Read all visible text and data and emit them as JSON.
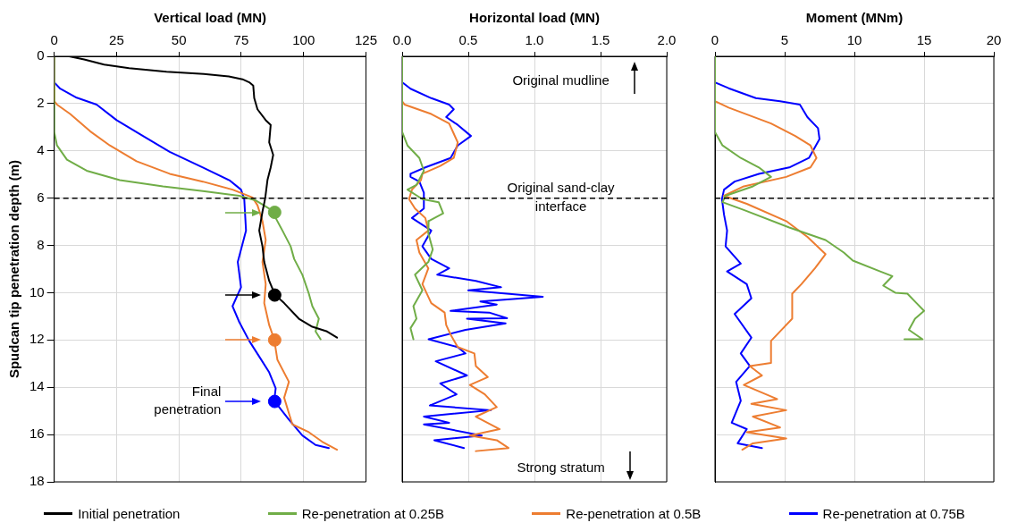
{
  "chart_data": [
    {
      "type": "line",
      "xlabel": "Vertical load (MN)",
      "ylabel": "Spudcan tip penetration depth (m)",
      "xlim": [
        0,
        125
      ],
      "xticks": [
        0,
        25,
        50,
        75,
        100,
        125
      ],
      "ylim": [
        18,
        0
      ],
      "yticks": [
        0,
        2,
        4,
        6,
        8,
        10,
        12,
        14,
        16,
        18
      ],
      "grid": true,
      "legend": "bottom",
      "ref_lines": [
        {
          "axis": "y",
          "value": 6,
          "line_style": "dashed",
          "color": "#000000"
        }
      ],
      "annotations": [
        "Final penetration"
      ],
      "series": [
        {
          "name": "Initial penetration",
          "color": "#000000",
          "x": [
            0,
            6,
            12,
            20,
            30,
            45,
            60,
            70,
            75.5,
            78.2,
            79.8,
            80.2,
            81.5,
            84.8,
            86.8,
            86.2,
            87.8,
            86.8,
            85.5,
            84.6,
            83.5,
            82.2,
            83.5,
            84.2,
            86.2,
            88.6,
            92.2,
            98.1,
            103.5,
            109.4,
            113.4
          ],
          "values": [
            0,
            0,
            0.13,
            0.35,
            0.5,
            0.65,
            0.75,
            0.85,
            0.97,
            1.1,
            1.24,
            1.77,
            2.24,
            2.7,
            2.9,
            3.64,
            4.17,
            4.7,
            5.24,
            6,
            6.57,
            7.37,
            8.04,
            8.7,
            9.5,
            10.1,
            10.44,
            11.1,
            11.44,
            11.64,
            11.9
          ]
        },
        {
          "name": "Re-penetration at 0.25B",
          "color": "#70ad47",
          "x": [
            0,
            0,
            1.1,
            5.1,
            13,
            26.3,
            43.6,
            59.6,
            74.2,
            80.9,
            86.2,
            88.8,
            91.5,
            94.8,
            96.2,
            99.5,
            102.1,
            103.5,
            106.1,
            104.8,
            106.8
          ],
          "values": [
            0,
            3.2,
            3.77,
            4.37,
            4.84,
            5.24,
            5.5,
            5.7,
            5.9,
            6.1,
            6.44,
            6.84,
            7.37,
            8.04,
            8.57,
            9.24,
            10.04,
            10.57,
            11.1,
            11.64,
            11.97
          ]
        },
        {
          "name": "Re-penetration at 0.5B",
          "color": "#ed7d31",
          "x": [
            0,
            0,
            1.1,
            6.4,
            14.4,
            22.3,
            33,
            46.3,
            59.6,
            71.5,
            79.5,
            81.5,
            83.5,
            84.8,
            83.5,
            84.8,
            84.2,
            86.2,
            88.2,
            89.5,
            94.1,
            92.2,
            94.1,
            95.5,
            102.1,
            107.4,
            113.4
          ],
          "values": [
            0,
            1.9,
            2.04,
            2.44,
            3.17,
            3.77,
            4.44,
            4.97,
            5.3,
            5.64,
            5.97,
            6.3,
            6.97,
            7.77,
            8.7,
            9.64,
            10.44,
            11.37,
            11.97,
            12.84,
            13.77,
            14.44,
            15.1,
            15.57,
            15.9,
            16.3,
            16.64
          ]
        },
        {
          "name": "Re-penetration at 0.75B",
          "color": "#0000ff",
          "x": [
            0,
            0,
            2.4,
            9,
            17,
            25,
            35.6,
            46.3,
            59.6,
            70.2,
            74.9,
            76.2,
            76.9,
            73.6,
            74.9,
            71.5,
            74.2,
            78.2,
            82.2,
            86.2,
            88.8,
            88.2,
            94.1,
            99.5,
            104.8,
            110.1
          ],
          "values": [
            0,
            1.1,
            1.37,
            1.75,
            2.04,
            2.7,
            3.37,
            4.04,
            4.7,
            5.24,
            5.64,
            6.04,
            7.37,
            8.7,
            9.77,
            10.57,
            11.24,
            12.04,
            12.7,
            13.37,
            14.04,
            14.57,
            15.37,
            16.04,
            16.44,
            16.57
          ]
        },
        {
          "type": "scatter",
          "marker": "circle",
          "color": "#70ad47",
          "x": [
            88.4
          ],
          "values": [
            6.6
          ]
        },
        {
          "type": "scatter",
          "marker": "circle",
          "color": "#000000",
          "x": [
            88.4
          ],
          "values": [
            10.1
          ]
        },
        {
          "type": "scatter",
          "marker": "circle",
          "color": "#ed7d31",
          "x": [
            88.4
          ],
          "values": [
            12
          ]
        },
        {
          "type": "scatter",
          "marker": "circle",
          "color": "#0000ff",
          "x": [
            88.4
          ],
          "values": [
            14.6
          ]
        }
      ]
    },
    {
      "type": "line",
      "xlabel": "Horizontal load (MN)",
      "xlim": [
        0,
        2
      ],
      "xticks": [
        {
          "value": 0,
          "label": "0.0"
        },
        {
          "value": 0.5,
          "label": "0.5"
        },
        {
          "value": 1,
          "label": "1.0"
        },
        {
          "value": 1.5,
          "label": "1.5"
        },
        {
          "value": 2,
          "label": "2.0"
        }
      ],
      "ylim": [
        18,
        0
      ],
      "yticks": [
        0,
        2,
        4,
        6,
        8,
        10,
        12,
        14,
        16,
        18
      ],
      "grid": true,
      "tick_labels": "x",
      "ref_lines": [
        {
          "axis": "y",
          "value": 6,
          "line_style": "dashed",
          "color": "#000000",
          "label": "Original sand-clay interface"
        }
      ],
      "annotations": [
        "Original mudline",
        "Strong stratum"
      ],
      "series": [
        {
          "color": "#70ad47",
          "x": [
            0,
            0,
            0.04,
            0.13,
            0.164,
            0.108,
            0.04,
            0.153,
            0.276,
            0.31,
            0.2,
            0.198,
            0.231,
            0.198,
            0.097,
            0.153,
            0.085,
            0.108,
            0.063,
            0.085
          ],
          "values": [
            0,
            3.2,
            3.77,
            4.3,
            4.84,
            5.44,
            5.64,
            6.04,
            6.17,
            6.64,
            6.97,
            7.5,
            8.17,
            8.7,
            9.24,
            9.9,
            10.57,
            11.1,
            11.5,
            11.97
          ]
        },
        {
          "color": "#ed7d31",
          "x": [
            0,
            0,
            0.018,
            0.22,
            0.355,
            0.42,
            0.39,
            0.288,
            0.153,
            0.142,
            0.074,
            0.052,
            0.097,
            0.175,
            0.198,
            0.108,
            0.13,
            0.198,
            0.153,
            0.22,
            0.321,
            0.333,
            0.366,
            0.42,
            0.546,
            0.557,
            0.647,
            0.512,
            0.625,
            0.715,
            0.557,
            0.737,
            0.512,
            0.715,
            0.804,
            0.557
          ],
          "values": [
            0,
            1.9,
            2.04,
            2.44,
            2.84,
            3.64,
            4.3,
            4.64,
            4.97,
            5.24,
            5.64,
            6.04,
            6.44,
            6.84,
            7.37,
            7.77,
            8.3,
            8.97,
            9.64,
            10.44,
            10.84,
            11.37,
            11.77,
            12.3,
            12.57,
            13.1,
            13.57,
            13.9,
            14.3,
            14.84,
            15.24,
            15.77,
            16.04,
            16.24,
            16.57,
            16.7
          ]
        },
        {
          "color": "#0000ff",
          "x": [
            0,
            0,
            0.063,
            0.22,
            0.355,
            0.39,
            0.333,
            0.42,
            0.52,
            0.42,
            0.366,
            0.175,
            0.063,
            0.063,
            0.13,
            0.164,
            0.164,
            0.074,
            0.22,
            0.153,
            0.22,
            0.355,
            0.265,
            0.557,
            0.748,
            0.5,
            1.063,
            0.591,
            0.715,
            0.366,
            0.658,
            0.793,
            0.49,
            0.782,
            0.479,
            0.2,
            0.42,
            0.479,
            0.254,
            0.49,
            0.288,
            0.411,
            0.209,
            0.67,
            0.164,
            0.355,
            0.164,
            0.602,
            0.243,
            0.467
          ],
          "values": [
            0,
            1.1,
            1.37,
            1.77,
            2.04,
            2.24,
            2.57,
            2.9,
            3.37,
            3.77,
            4.3,
            4.7,
            4.97,
            5.1,
            5.3,
            5.77,
            6.44,
            6.84,
            7.37,
            8.04,
            8.57,
            8.97,
            9.24,
            9.5,
            9.77,
            9.9,
            10.17,
            10.37,
            10.5,
            10.77,
            10.84,
            11.08,
            11.1,
            11.3,
            11.57,
            11.97,
            12.3,
            12.57,
            12.9,
            13.5,
            13.84,
            14.3,
            14.77,
            14.97,
            15.24,
            15.5,
            15.57,
            16.04,
            16.24,
            16.57
          ]
        }
      ]
    },
    {
      "type": "line",
      "xlabel": "Moment (MNm)",
      "xlim": [
        0,
        20
      ],
      "xticks": [
        0,
        5,
        10,
        15,
        20
      ],
      "ylim": [
        18,
        0
      ],
      "yticks": [
        0,
        2,
        4,
        6,
        8,
        10,
        12,
        14,
        16,
        18
      ],
      "grid": true,
      "tick_labels": "x",
      "ref_lines": [
        {
          "axis": "y",
          "value": 6,
          "line_style": "dashed",
          "color": "#000000"
        }
      ],
      "series": [
        {
          "color": "#70ad47",
          "x": [
            0,
            0,
            0.54,
            1.85,
            3.15,
            4.02,
            2.72,
            0.76,
            0.54,
            2.07,
            5.33,
            7.93,
            9.24,
            9.89,
            11.85,
            12.72,
            12.07,
            12.93,
            13.8,
            14.46,
            15,
            14.35,
            13.91,
            14.89,
            13.59
          ],
          "values": [
            0,
            3.2,
            3.77,
            4.3,
            4.7,
            5.1,
            5.5,
            5.9,
            6.17,
            6.5,
            7.24,
            7.77,
            8.3,
            8.64,
            9.1,
            9.3,
            9.7,
            10,
            10.04,
            10.44,
            10.77,
            11.1,
            11.57,
            11.97,
            11.97
          ]
        },
        {
          "color": "#ed7d31",
          "x": [
            0,
            0,
            0.98,
            4.02,
            5.76,
            6.85,
            7.28,
            6.85,
            5.11,
            2.07,
            0.65,
            2.28,
            5.11,
            6.63,
            7.93,
            7.17,
            6.2,
            5.54,
            5.54,
            4.89,
            4.02,
            4.02,
            2.5,
            3.37,
            2.07,
            4.46,
            2.61,
            5.11,
            2.72,
            4.67,
            2.28,
            5.11,
            2.72,
            1.96
          ],
          "values": [
            0,
            1.9,
            2.17,
            2.84,
            3.37,
            3.77,
            4.3,
            4.7,
            5.1,
            5.5,
            5.9,
            6.24,
            6.97,
            7.64,
            8.37,
            8.97,
            9.64,
            10.04,
            11.1,
            11.5,
            12.04,
            12.97,
            13.1,
            13.5,
            13.9,
            14.5,
            14.7,
            14.97,
            15.24,
            15.7,
            15.9,
            16.17,
            16.37,
            16.64
          ]
        },
        {
          "color": "#0000ff",
          "x": [
            0,
            0,
            0.98,
            2.93,
            4.67,
            6.09,
            6.63,
            7.39,
            7.5,
            6.74,
            5.33,
            3.15,
            1.41,
            0.65,
            0.5,
            0.65,
            0.87,
            0.76,
            1.85,
            0.87,
            2.28,
            2.61,
            1.41,
            2.61,
            1.85,
            2.5,
            1.52,
            1.85,
            1.2,
            2.28,
            1.63,
            3.37
          ],
          "values": [
            0,
            1.1,
            1.35,
            1.77,
            1.9,
            2.04,
            2.57,
            3.04,
            3.5,
            4.3,
            4.7,
            4.97,
            5.3,
            5.64,
            6.04,
            6.7,
            7.37,
            8.04,
            8.77,
            9.1,
            9.64,
            10.24,
            10.9,
            11.9,
            12.57,
            13.1,
            13.77,
            14.57,
            15.5,
            15.77,
            16.37,
            16.57
          ]
        }
      ]
    }
  ]
}
